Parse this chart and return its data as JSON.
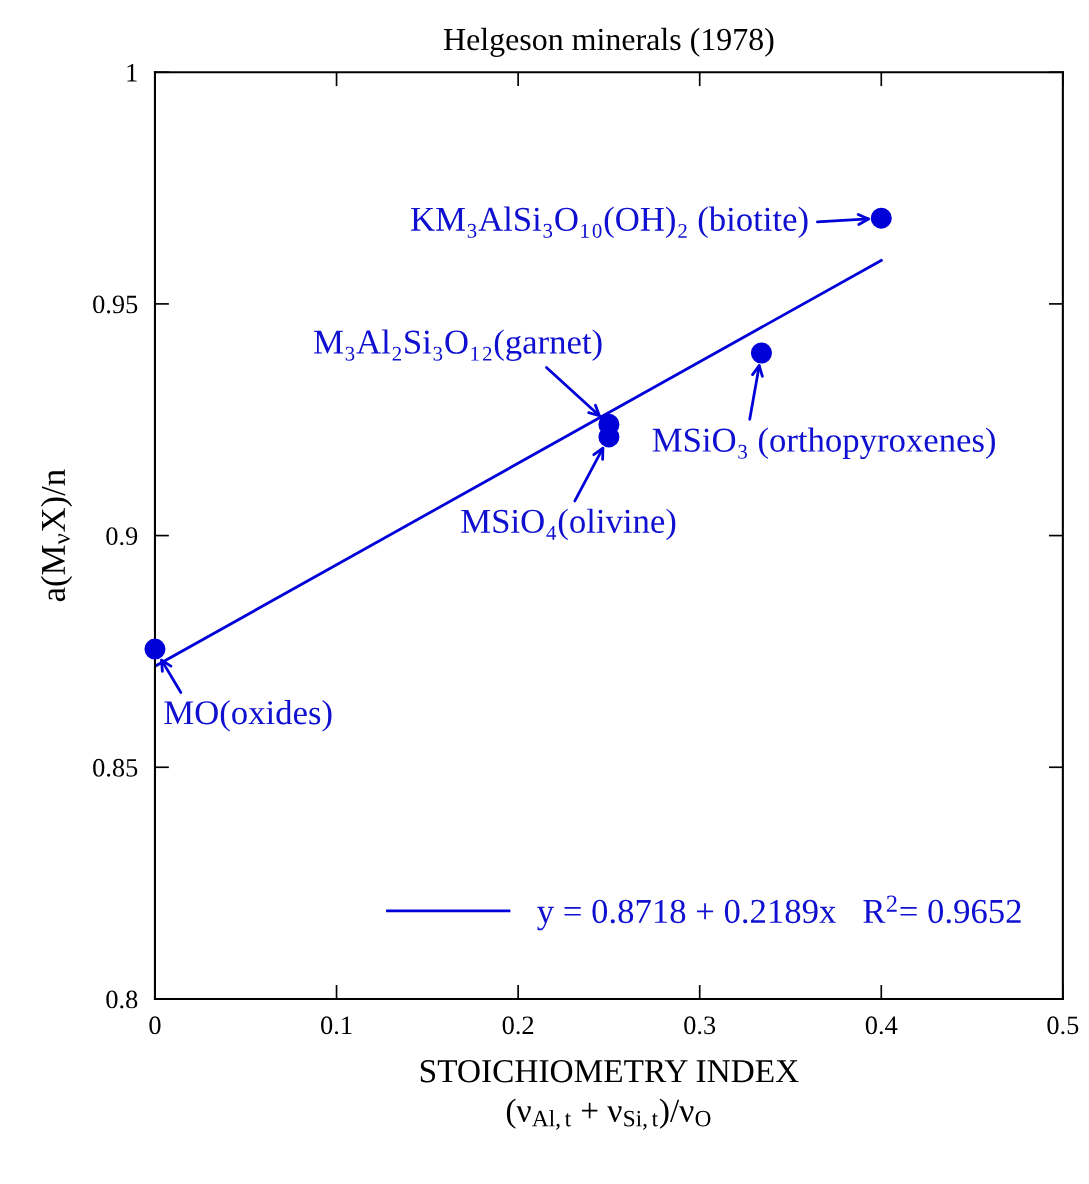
{
  "chart_data": {
    "type": "scatter",
    "title": "Helgeson minerals (1978)",
    "xlabel": "STOICHIOMETRY INDEX\n(ν$_{Al,t}$ + ν$_{Si,t}$)/ν$_{O}$",
    "ylabel": "a(M$_{ν}$X)/n",
    "series": [
      {
        "color": "#0000d8",
        "x": [
          0,
          0.25,
          0.25,
          0.334,
          0.4
        ],
        "values": [
          0.8755,
          0.924,
          0.9213,
          0.9394,
          0.9685
        ],
        "marker": "circle"
      },
      {
        "type": "line",
        "name": "y = 0.8718 + 0.2189x   R$^{2}$= 0.9652",
        "color": "#0000d8",
        "x": [
          0,
          0.4
        ],
        "values": [
          0.8718,
          0.9594
        ],
        "line_style": "solid"
      }
    ],
    "annotations": [
      {
        "text": "KM₃AlSi₃O₁₀(OH)₂ (biotite)",
        "x": 0.4,
        "y": 0.9685
      },
      {
        "text": "M₃Al₂Si₃O₁₂(garnet)",
        "x": 0.25,
        "y": 0.924
      },
      {
        "text": "MSiO₄(olivine)",
        "x": 0.25,
        "y": 0.9213
      },
      {
        "text": "MSiO₃ (orthopyroxenes)",
        "x": 0.334,
        "y": 0.9394
      },
      {
        "text": "MO(oxides)",
        "x": 0,
        "y": 0.8755
      }
    ],
    "xlim": [
      0,
      0.5
    ],
    "xticks": [
      0,
      0.1,
      0.2,
      0.3,
      0.4,
      0.5
    ],
    "ylim": [
      0.8,
      1
    ],
    "yticks": [
      0.8,
      0.85,
      0.9,
      0.95,
      1
    ],
    "grid": false,
    "legend": "bottom right"
  }
}
